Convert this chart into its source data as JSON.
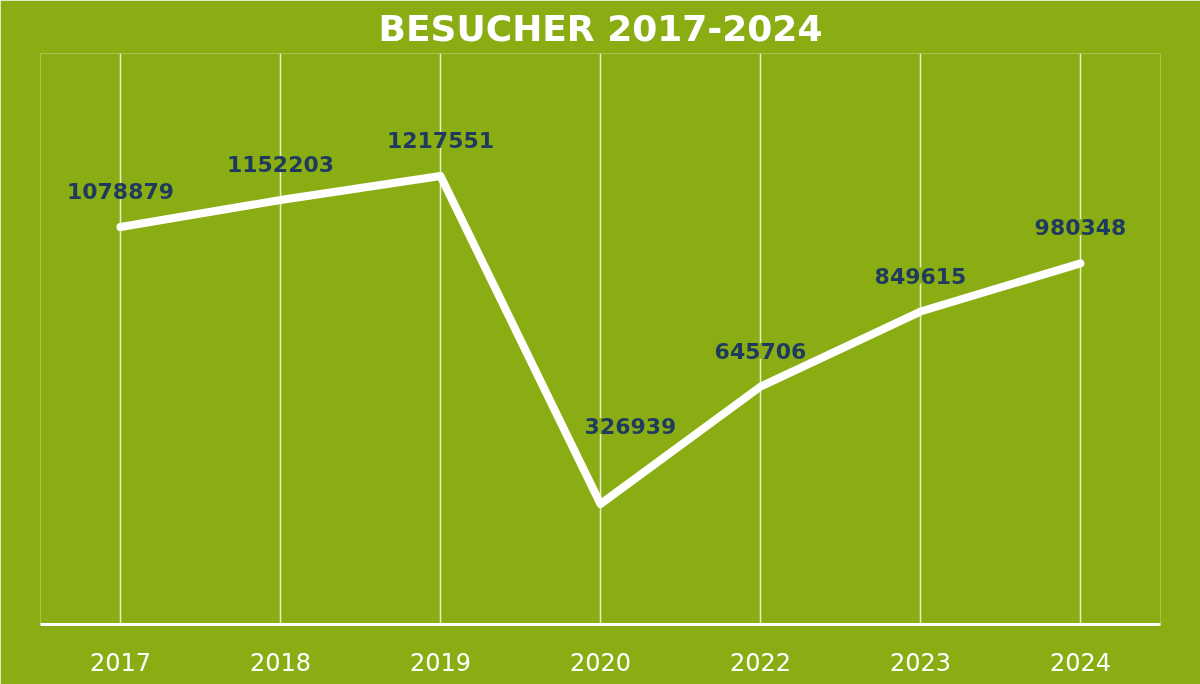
{
  "chart_data": {
    "type": "line",
    "title": "BESUCHER 2017-2024",
    "categories": [
      "2017",
      "2018",
      "2019",
      "2020",
      "2022",
      "2023",
      "2024"
    ],
    "series": [
      {
        "color": "#ffffff",
        "values": [
          1078879,
          1152203,
          1217551,
          326939,
          645706,
          849615,
          980348
        ]
      }
    ],
    "ylim": [
      0,
      1550000
    ],
    "tick_labels": "x",
    "data_labels": true,
    "grid": "x",
    "marker": "none",
    "line_style": "solid"
  }
}
